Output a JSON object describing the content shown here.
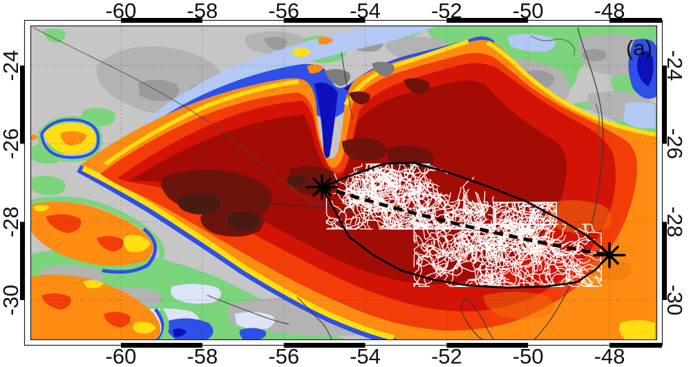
{
  "panel_label": "(a)",
  "axes": {
    "lon": {
      "labels": [
        "-60",
        "-58",
        "-56",
        "-54",
        "-52",
        "-50",
        "-48"
      ],
      "values": [
        -60,
        -58,
        -56,
        -54,
        -52,
        -50,
        -48
      ]
    },
    "lat": {
      "labels": [
        "-24",
        "-26",
        "-28",
        "-30"
      ],
      "values": [
        -24,
        -26,
        -28,
        -30
      ]
    }
  },
  "map": {
    "extent": {
      "lon_min": -62.2,
      "lon_max": -46.8,
      "lat_min": -31.0,
      "lat_max": -23.0
    },
    "graticule_interval_deg": 2,
    "track": {
      "start": {
        "lon": -55.06,
        "lat": -27.11
      },
      "end": {
        "lon": -48.0,
        "lat": -28.85
      }
    },
    "hull": [
      [
        -55.06,
        -27.11
      ],
      [
        -54.48,
        -26.86
      ],
      [
        -53.53,
        -26.51
      ],
      [
        -52.79,
        -26.49
      ],
      [
        -51.94,
        -26.74
      ],
      [
        -51.0,
        -27.09
      ],
      [
        -50.04,
        -27.48
      ],
      [
        -49.09,
        -28.01
      ],
      [
        -48.54,
        -28.36
      ],
      [
        -48.0,
        -28.85
      ],
      [
        -48.34,
        -29.22
      ],
      [
        -48.8,
        -29.54
      ],
      [
        -49.56,
        -29.65
      ],
      [
        -50.49,
        -29.68
      ],
      [
        -51.43,
        -29.63
      ],
      [
        -52.36,
        -29.47
      ],
      [
        -53.12,
        -29.24
      ],
      [
        -53.8,
        -28.85
      ],
      [
        -54.4,
        -28.38
      ],
      [
        -54.86,
        -27.49
      ]
    ],
    "lightning_clusters": [
      {
        "region": "northwest",
        "lon_min": -54.95,
        "lon_max": -50.8,
        "lat_min": -28.18,
        "lat_max": -26.52,
        "flashes": 32,
        "seed": 7
      },
      {
        "region": "southeast",
        "lon_min": -52.8,
        "lon_max": -48.2,
        "lat_min": -29.65,
        "lat_max": -28.06,
        "flashes": 32,
        "seed": 13
      },
      {
        "region": "central-bridge",
        "lon_min": -50.85,
        "lon_max": -49.3,
        "lat_min": -28.4,
        "lat_max": -27.5,
        "flashes": 8,
        "seed": 21
      }
    ]
  },
  "colors": {
    "background_gray": "#c6c6c6",
    "gray_patch": "#b3b3b3",
    "gray_dark_patch": "#9b9b9b",
    "gray_spot_dark": "#7d7d7d",
    "green": "#7cd47c",
    "lavender": "#dce4f6",
    "light_blue": "#b3c8f2",
    "blue": "#2e4fe8",
    "dark_blue": "#0d10ba",
    "yellow": "#ffdf12",
    "orange": "#ff8c12",
    "orange_deep": "#f0720e",
    "red_orange": "#f23d08",
    "red": "#d41307",
    "dark_red": "#a30c04",
    "maroon": "#6e130b",
    "near_black_red": "#4a1a12",
    "flash_white": "#ffffff",
    "track_black": "#000000",
    "frame_color": "#1a1a1a",
    "label_color": "#111111",
    "river_gray": "#4a4a4a",
    "river_dark": "#2a2a2a",
    "coast_dark": "#333333",
    "green_river": "#3f5a3f"
  }
}
